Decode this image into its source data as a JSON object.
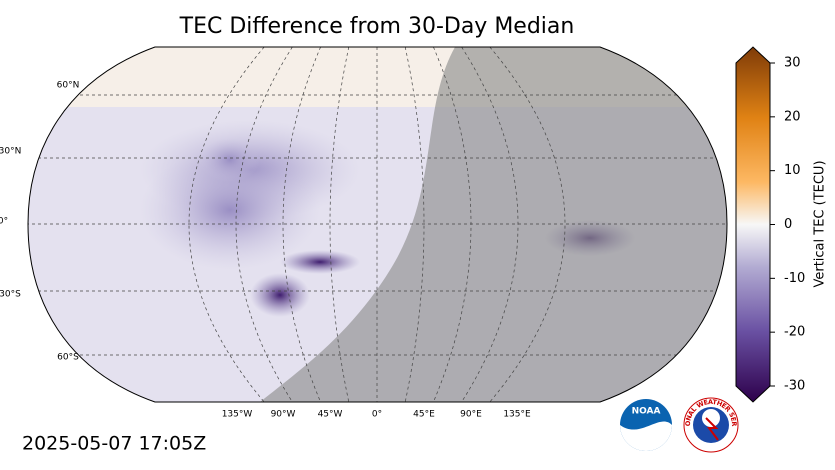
{
  "title": "TEC Difference from 30-Day Median",
  "lat_labels": [
    "60°N",
    "30°N",
    "0°",
    "30°S",
    "60°S"
  ],
  "lon_labels": [
    "135°W",
    "90°W",
    "45°W",
    "0°",
    "45°E",
    "90°E",
    "135°E"
  ],
  "colorbar": {
    "label": "Vertical TEC (TECU)",
    "lim": [
      -30,
      30
    ],
    "ticks": [
      30,
      20,
      10,
      0,
      -10,
      -20,
      -30
    ]
  },
  "timestamp": "2025-05-07 17:05Z",
  "logos": {
    "noaa": "NOAA",
    "nws": "NATIONAL WEATHER SERVICE"
  }
}
